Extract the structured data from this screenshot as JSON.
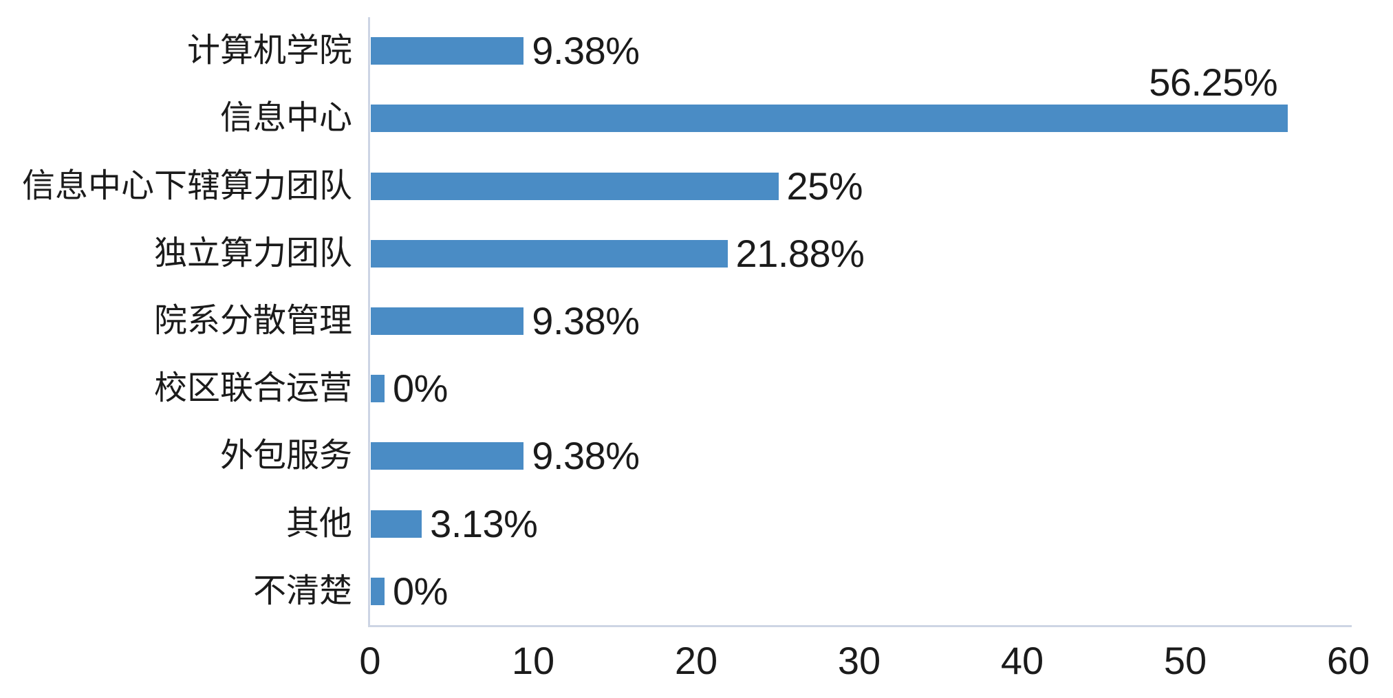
{
  "chart_data": {
    "type": "bar",
    "orientation": "horizontal",
    "title": "",
    "xlabel": "",
    "ylabel": "",
    "categories": [
      "计算机学院",
      "信息中心",
      "信息中心下辖算力团队",
      "独立算力团队",
      "院系分散管理",
      "校区联合运营",
      "外包服务",
      "其他",
      "不清楚"
    ],
    "values": [
      9.38,
      56.25,
      25,
      21.88,
      9.38,
      0,
      9.38,
      3.13,
      0
    ],
    "value_labels": [
      "9.38%",
      "56.25%",
      "25%",
      "21.88%",
      "9.38%",
      "0%",
      "9.38%",
      "3.13%",
      "0%"
    ],
    "x_ticks": [
      "0",
      "10",
      "20",
      "30",
      "40",
      "50",
      "60"
    ],
    "xlim": [
      0,
      60
    ],
    "grid": false,
    "legend": "none",
    "bar_color": "#4a8cc5",
    "axis_line_color": "#cdd5e4",
    "text_color": "#1b1b1b"
  }
}
